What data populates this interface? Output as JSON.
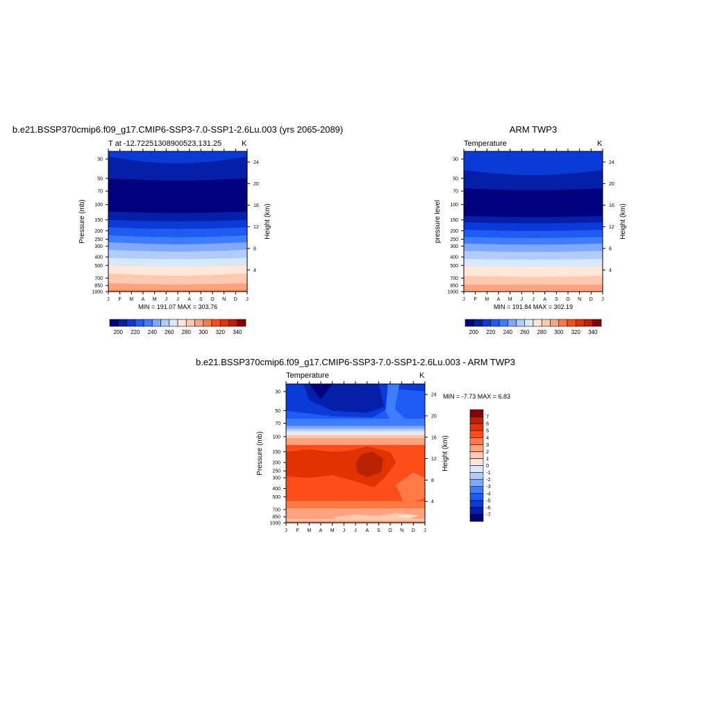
{
  "palette": [
    "#00007f",
    "#0520a8",
    "#0a3ad8",
    "#1e5cf5",
    "#3f7dff",
    "#80a8ff",
    "#b0ccff",
    "#d6e8ff",
    "#ffe6d6",
    "#ffc8b0",
    "#ffa27f",
    "#ff7a45",
    "#ff4d1a",
    "#e03300",
    "#b82200",
    "#8a0000"
  ],
  "chart_data": [
    {
      "type": "heatmap",
      "title": "b.e21.BSSP370cmip6.f09_g17.CMIP6-SSP3-7.0-SSP1-2.6Lu.003 (yrs 2065-2089)",
      "subtitle_left": "T at -12.72251308900523,131.25",
      "units": "K",
      "ylabel": "Pressure (mb)",
      "y2label": "Height (km)",
      "months": [
        "J",
        "F",
        "M",
        "A",
        "M",
        "J",
        "J",
        "A",
        "S",
        "O",
        "N",
        "D",
        "J"
      ],
      "pressure_ticks": [
        30,
        50,
        70,
        100,
        150,
        200,
        250,
        300,
        400,
        500,
        700,
        850,
        1000
      ],
      "height_ticks": [
        24,
        20,
        16,
        12,
        8,
        4
      ],
      "minmax": "MIN = 191.07 MAX = 303.76",
      "levels": [
        200,
        210,
        220,
        230,
        240,
        250,
        260,
        270,
        280,
        290,
        300,
        310,
        320,
        330,
        340
      ],
      "level_labels": [
        "200",
        "220",
        "240",
        "260",
        "280",
        "300",
        "320",
        "340"
      ],
      "bands": [
        {
          "color": 2,
          "top": 24.5,
          "bottom": 28,
          "seasonal_amp_pct": 25
        },
        {
          "color": 1,
          "top": 28,
          "bottom": 50,
          "seasonal_amp_pct": 20
        },
        {
          "color": 0,
          "top": 50,
          "bottom": 120,
          "seasonal_amp_pct": 6
        },
        {
          "color": 1,
          "top": 120,
          "bottom": 150,
          "seasonal_amp_pct": 4
        },
        {
          "color": 2,
          "top": 150,
          "bottom": 182,
          "seasonal_amp_pct": 4
        },
        {
          "color": 3,
          "top": 182,
          "bottom": 225,
          "seasonal_amp_pct": 5
        },
        {
          "color": 4,
          "top": 225,
          "bottom": 270,
          "seasonal_amp_pct": 6
        },
        {
          "color": 5,
          "top": 270,
          "bottom": 330,
          "seasonal_amp_pct": 6
        },
        {
          "color": 6,
          "top": 330,
          "bottom": 410,
          "seasonal_amp_pct": 5
        },
        {
          "color": 7,
          "top": 410,
          "bottom": 500,
          "seasonal_amp_pct": 3
        },
        {
          "color": 8,
          "top": 500,
          "bottom": 620,
          "seasonal_amp_pct": 3
        },
        {
          "color": 9,
          "top": 620,
          "bottom": 800,
          "seasonal_amp_pct": 5
        },
        {
          "color": 10,
          "top": 800,
          "bottom": 960,
          "seasonal_amp_pct": 3
        },
        {
          "color": 11,
          "top": 960,
          "bottom": 1000,
          "seasonal_amp_pct": 0
        }
      ],
      "regions": []
    },
    {
      "type": "heatmap",
      "title": "ARM TWP3",
      "subtitle_left": "Temperature",
      "units": "K",
      "ylabel": "pressure level",
      "y2label": "Height (km)",
      "months": [
        "J",
        "F",
        "M",
        "A",
        "M",
        "J",
        "J",
        "A",
        "S",
        "O",
        "N",
        "D",
        "J"
      ],
      "pressure_ticks": [
        30,
        50,
        70,
        100,
        150,
        200,
        250,
        300,
        400,
        500,
        700,
        850,
        1000
      ],
      "height_ticks": [
        24,
        20,
        16,
        12,
        8,
        4
      ],
      "minmax": "MIN = 191.84 MAX = 302.19",
      "levels": [
        200,
        210,
        220,
        230,
        240,
        250,
        260,
        270,
        280,
        290,
        300,
        310,
        320,
        330,
        340
      ],
      "level_labels": [
        "200",
        "220",
        "240",
        "260",
        "280",
        "300",
        "320",
        "340"
      ],
      "bands": [
        {
          "color": 2,
          "top": 24.5,
          "bottom": 40,
          "seasonal_amp_pct": 25
        },
        {
          "color": 1,
          "top": 40,
          "bottom": 65,
          "seasonal_amp_pct": 15
        },
        {
          "color": 0,
          "top": 65,
          "bottom": 135,
          "seasonal_amp_pct": 5
        },
        {
          "color": 1,
          "top": 135,
          "bottom": 160,
          "seasonal_amp_pct": 3
        },
        {
          "color": 2,
          "top": 160,
          "bottom": 195,
          "seasonal_amp_pct": 3
        },
        {
          "color": 3,
          "top": 195,
          "bottom": 235,
          "seasonal_amp_pct": 3
        },
        {
          "color": 4,
          "top": 235,
          "bottom": 280,
          "seasonal_amp_pct": 3
        },
        {
          "color": 5,
          "top": 280,
          "bottom": 340,
          "seasonal_amp_pct": 3
        },
        {
          "color": 6,
          "top": 340,
          "bottom": 420,
          "seasonal_amp_pct": 3
        },
        {
          "color": 7,
          "top": 420,
          "bottom": 510,
          "seasonal_amp_pct": 2
        },
        {
          "color": 8,
          "top": 510,
          "bottom": 660,
          "seasonal_amp_pct": 2
        },
        {
          "color": 9,
          "top": 660,
          "bottom": 830,
          "seasonal_amp_pct": 3
        },
        {
          "color": 10,
          "top": 830,
          "bottom": 1000,
          "seasonal_amp_pct": 0
        }
      ],
      "regions": []
    },
    {
      "type": "heatmap",
      "title": "b.e21.BSSP370cmip6.f09_g17.CMIP6-SSP3-7.0-SSP1-2.6Lu.003 - ARM TWP3",
      "subtitle_left": "Temperature",
      "units": "K",
      "ylabel": "Pressure (mb)",
      "y2label": "Height (km)",
      "months": [
        "J",
        "F",
        "M",
        "A",
        "M",
        "J",
        "J",
        "A",
        "S",
        "O",
        "N",
        "D",
        "J"
      ],
      "pressure_ticks": [
        30,
        50,
        70,
        100,
        150,
        200,
        250,
        300,
        400,
        500,
        700,
        850,
        1000
      ],
      "height_ticks": [
        24,
        20,
        16,
        12,
        8,
        4
      ],
      "minmax": "MIN =  -7.73 MAX =   6.83",
      "levels": [
        -7,
        -6,
        -5,
        -4,
        -3,
        -2,
        -1,
        0,
        1,
        2,
        3,
        4,
        5,
        6,
        7
      ],
      "level_labels": [
        "-7",
        "-6",
        "-5",
        "-4",
        "-3",
        "-2",
        "-1",
        "0",
        "1",
        "2",
        "3",
        "4",
        "5",
        "6",
        "7"
      ],
      "bands": [
        {
          "color": 3,
          "top": 24.5,
          "bottom": 62,
          "seasonal_amp_pct": 0
        },
        {
          "color": 4,
          "top": 62,
          "bottom": 75,
          "seasonal_amp_pct": 0
        },
        {
          "color": 5,
          "top": 75,
          "bottom": 81,
          "seasonal_amp_pct": 0
        },
        {
          "color": 6,
          "top": 81,
          "bottom": 86,
          "seasonal_amp_pct": 0
        },
        {
          "color": 7,
          "top": 86,
          "bottom": 91,
          "seasonal_amp_pct": 0
        },
        {
          "color": 8,
          "top": 91,
          "bottom": 96,
          "seasonal_amp_pct": 0
        },
        {
          "color": 9,
          "top": 96,
          "bottom": 104,
          "seasonal_amp_pct": 0
        },
        {
          "color": 10,
          "top": 104,
          "bottom": 125,
          "seasonal_amp_pct": 0
        },
        {
          "color": 12,
          "top": 125,
          "bottom": 560,
          "seasonal_amp_pct": 0
        },
        {
          "color": 11,
          "top": 560,
          "bottom": 680,
          "seasonal_amp_pct": 0
        },
        {
          "color": 10,
          "top": 680,
          "bottom": 900,
          "seasonal_amp_pct": 0
        },
        {
          "color": 9,
          "top": 900,
          "bottom": 960,
          "seasonal_amp_pct": 0
        },
        {
          "color": 11,
          "top": 960,
          "bottom": 1000,
          "seasonal_amp_pct": 0
        }
      ],
      "regions": [
        {
          "color": 2,
          "points": [
            [
              0,
              24.5
            ],
            [
              12,
              24.5
            ],
            [
              12,
              30
            ],
            [
              9.6,
              28
            ],
            [
              9,
              45
            ],
            [
              7.5,
              60
            ],
            [
              4,
              58
            ],
            [
              1,
              52
            ],
            [
              0,
              50
            ]
          ]
        },
        {
          "color": 1,
          "points": [
            [
              1.5,
              24.5
            ],
            [
              8,
              24.5
            ],
            [
              8.5,
              45
            ],
            [
              7,
              53
            ],
            [
              4,
              50
            ],
            [
              2,
              38
            ]
          ]
        },
        {
          "color": 0,
          "points": [
            [
              2,
              24.5
            ],
            [
              4,
              24.5
            ],
            [
              3,
              37
            ]
          ]
        },
        {
          "color": 4,
          "points": [
            [
              8.8,
              24.5
            ],
            [
              9.8,
              24.5
            ],
            [
              9.4,
              48
            ],
            [
              10.5,
              66
            ],
            [
              9,
              64
            ],
            [
              8.6,
              50
            ]
          ]
        },
        {
          "color": 13,
          "points": [
            [
              0,
              150
            ],
            [
              2,
              140
            ],
            [
              4,
              150
            ],
            [
              5.5,
              145
            ],
            [
              7,
              130
            ],
            [
              9,
              150
            ],
            [
              9.5,
              200
            ],
            [
              8.5,
              300
            ],
            [
              7.6,
              390
            ],
            [
              6,
              330
            ],
            [
              4,
              280
            ],
            [
              2,
              300
            ],
            [
              0,
              290
            ]
          ]
        },
        {
          "color": 14,
          "points": [
            [
              6,
              205
            ],
            [
              6.5,
              160
            ],
            [
              7.5,
              150
            ],
            [
              8.4,
              180
            ],
            [
              8.2,
              260
            ],
            [
              7,
              295
            ],
            [
              6.2,
              265
            ]
          ]
        },
        {
          "color": 11,
          "points": [
            [
              12,
              300
            ],
            [
              11,
              260
            ],
            [
              9.5,
              360
            ],
            [
              10.2,
              600
            ],
            [
              12,
              520
            ]
          ]
        },
        {
          "color": 9,
          "points": [
            [
              4,
              860
            ],
            [
              6,
              800
            ],
            [
              8,
              830
            ],
            [
              9.5,
              770
            ],
            [
              11.5,
              820
            ],
            [
              10.5,
              930
            ],
            [
              7,
              925
            ],
            [
              5,
              935
            ]
          ]
        },
        {
          "color": 8,
          "points": [
            [
              9.5,
              830
            ],
            [
              10.5,
              800
            ],
            [
              11.2,
              840
            ],
            [
              10.3,
              880
            ]
          ]
        }
      ]
    }
  ]
}
